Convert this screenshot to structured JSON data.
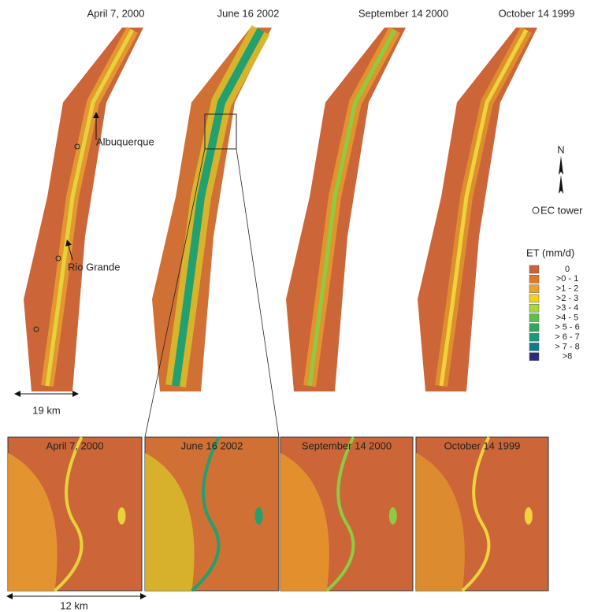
{
  "top_titles": [
    "April 7, 2000",
    "June 16 2002",
    "September 14 2000",
    "October 14 1999"
  ],
  "bottom_titles": [
    "April 7, 2000",
    "June 16 2002",
    "September 14 2000",
    "October 14 1999"
  ],
  "labels": {
    "albuquerque": "Albuquerque",
    "rio_grande": "Rio Grande",
    "scale_top": "19 km",
    "scale_bottom": "12 km",
    "north": "N",
    "ec_tower": "EC tower"
  },
  "legend": {
    "title": "ET (mm/d)",
    "items": [
      {
        "label": "0",
        "color": "#c8643c"
      },
      {
        "label": ">0 - 1",
        "color": "#e07a22"
      },
      {
        "label": ">1 - 2",
        "color": "#eaa22a"
      },
      {
        "label": ">2 - 3",
        "color": "#f2d21e"
      },
      {
        "label": ">3 - 4",
        "color": "#a8d83c"
      },
      {
        "label": ">4 - 5",
        "color": "#5cc048"
      },
      {
        "label": "> 5 - 6",
        "color": "#2ea85a"
      },
      {
        "label": "> 6 - 7",
        "color": "#1a9a78"
      },
      {
        "label": "> 7 - 8",
        "color": "#107890"
      },
      {
        "label": ">8",
        "color": "#2a2a80"
      }
    ]
  }
}
